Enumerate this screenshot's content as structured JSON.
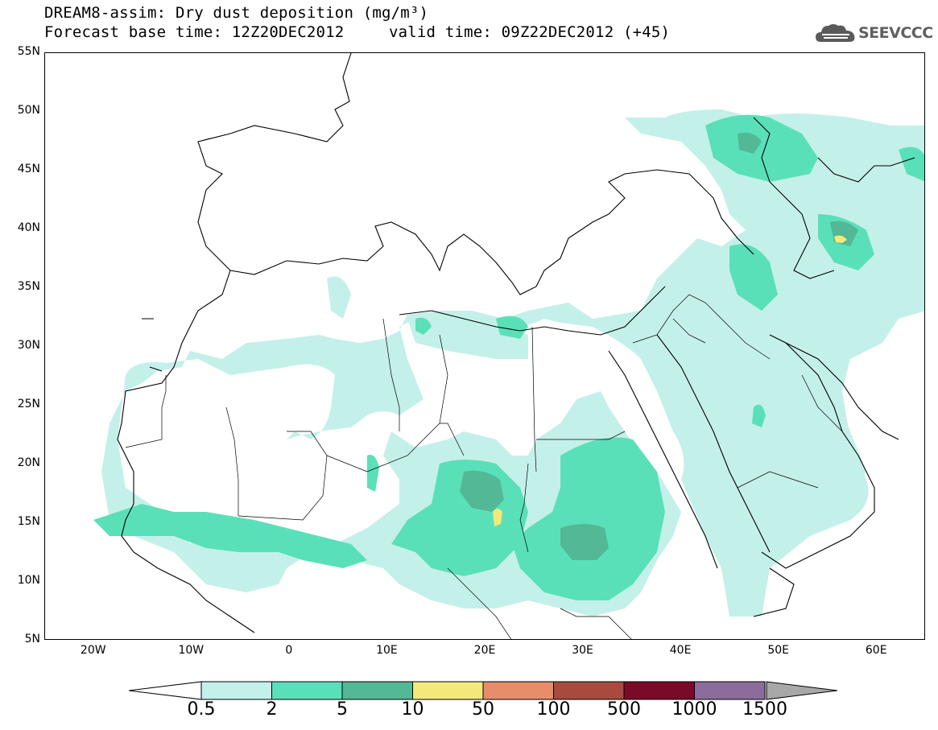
{
  "header": {
    "title_line1": "DREAM8-assim: Dry dust deposition (mg/m³)",
    "title_line2_base": "Forecast base time: 12Z20DEC2012",
    "title_line2_valid": "valid time: 09Z22DEC2012 (+45)"
  },
  "logo": {
    "text": "SEEVCCC",
    "icon": "cloud-logo-icon"
  },
  "map": {
    "lat_labels": [
      "55N",
      "50N",
      "45N",
      "40N",
      "35N",
      "30N",
      "25N",
      "20N",
      "15N",
      "10N",
      "5N"
    ],
    "lon_labels": [
      "20W",
      "10W",
      "0",
      "10E",
      "20E",
      "30E",
      "40E",
      "50E",
      "60E"
    ],
    "lat_range": [
      5,
      55
    ],
    "lon_range": [
      -25,
      65
    ]
  },
  "legend": {
    "labels": [
      "0.5",
      "2",
      "5",
      "10",
      "50",
      "100",
      "500",
      "1000",
      "1500"
    ],
    "colors": [
      "#c4f0ea",
      "#5ae0b8",
      "#52b896",
      "#f2e97a",
      "#e88d6a",
      "#a84a3e",
      "#7a0a2a",
      "#8c6c9c",
      "#a8a8a8"
    ]
  }
}
